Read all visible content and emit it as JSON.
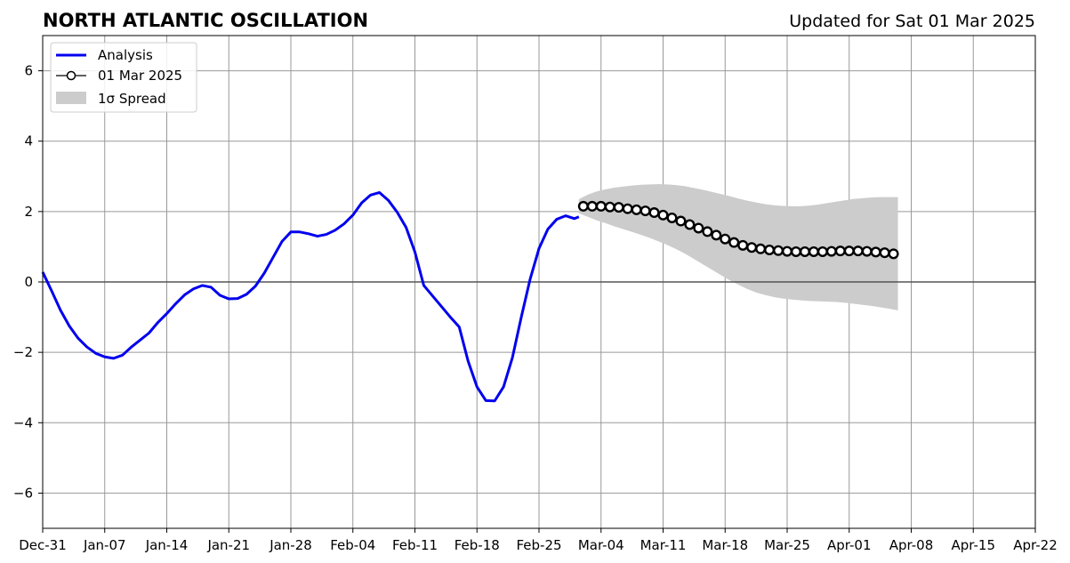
{
  "chart_data": {
    "type": "line",
    "title": "NORTH ATLANTIC OSCILLATION",
    "subtitle": "Updated for Sat 01 Mar 2025",
    "ylim": [
      -7,
      7
    ],
    "yticks": [
      6,
      4,
      2,
      0,
      -2,
      -4,
      -6
    ],
    "ytick_labels": [
      "6",
      "4",
      "2",
      "0",
      "−2",
      "−4",
      "−6"
    ],
    "xlim": [
      "2024-12-31",
      "2025-04-22"
    ],
    "xtick_labels": [
      "Dec-31",
      "Jan-07",
      "Jan-14",
      "Jan-21",
      "Jan-28",
      "Feb-04",
      "Feb-11",
      "Feb-18",
      "Feb-25",
      "Mar-04",
      "Mar-11",
      "Mar-18",
      "Mar-25",
      "Apr-01",
      "Apr-08",
      "Apr-15",
      "Apr-22"
    ],
    "xtick_dates": [
      "2024-12-31",
      "2025-01-07",
      "2025-01-14",
      "2025-01-21",
      "2025-01-28",
      "2025-02-04",
      "2025-02-11",
      "2025-02-18",
      "2025-02-25",
      "2025-03-04",
      "2025-03-11",
      "2025-03-18",
      "2025-03-25",
      "2025-04-01",
      "2025-04-08",
      "2025-04-15",
      "2025-04-22"
    ],
    "grid": true,
    "legend_position": "top-left",
    "legend": [
      {
        "label": "Analysis",
        "kind": "line",
        "color": "#0000ee"
      },
      {
        "label": "01 Mar 2025",
        "kind": "line-marker",
        "color": "#000000"
      },
      {
        "label": "1σ Spread",
        "kind": "patch",
        "color": "#cccccc"
      }
    ],
    "series": [
      {
        "name": "Analysis",
        "color": "#0000ee",
        "x": [
          "2024-12-31",
          "2025-01-01",
          "2025-01-02",
          "2025-01-03",
          "2025-01-04",
          "2025-01-05",
          "2025-01-06",
          "2025-01-07",
          "2025-01-08",
          "2025-01-09",
          "2025-01-10",
          "2025-01-11",
          "2025-01-12",
          "2025-01-13",
          "2025-01-14",
          "2025-01-15",
          "2025-01-16",
          "2025-01-17",
          "2025-01-18",
          "2025-01-19",
          "2025-01-20",
          "2025-01-21",
          "2025-01-22",
          "2025-01-23",
          "2025-01-24",
          "2025-01-25",
          "2025-01-26",
          "2025-01-27",
          "2025-01-28",
          "2025-01-29",
          "2025-01-30",
          "2025-01-31",
          "2025-02-01",
          "2025-02-02",
          "2025-02-03",
          "2025-02-04",
          "2025-02-05",
          "2025-02-06",
          "2025-02-07",
          "2025-02-08",
          "2025-02-09",
          "2025-02-10",
          "2025-02-11",
          "2025-02-12",
          "2025-02-13",
          "2025-02-14",
          "2025-02-15",
          "2025-02-16",
          "2025-02-17",
          "2025-02-18",
          "2025-02-19",
          "2025-02-20",
          "2025-02-21",
          "2025-02-22",
          "2025-02-23",
          "2025-02-24",
          "2025-02-25",
          "2025-02-26",
          "2025-02-27",
          "2025-02-28",
          "2025-03-01",
          "2025-03-01 12:00"
        ],
        "values": [
          0.28,
          -0.25,
          -0.8,
          -1.25,
          -1.6,
          -1.85,
          -2.03,
          -2.13,
          -2.17,
          -2.08,
          -1.85,
          -1.65,
          -1.45,
          -1.15,
          -0.9,
          -0.62,
          -0.37,
          -0.2,
          -0.1,
          -0.15,
          -0.38,
          -0.48,
          -0.47,
          -0.35,
          -0.12,
          0.25,
          0.7,
          1.15,
          1.42,
          1.42,
          1.37,
          1.3,
          1.35,
          1.47,
          1.65,
          1.9,
          2.25,
          2.47,
          2.54,
          2.32,
          1.98,
          1.55,
          0.85,
          -0.1,
          -0.4,
          -0.7,
          -1.0,
          -1.28,
          -2.25,
          -2.98,
          -3.37,
          -3.38,
          -2.98,
          -2.15,
          -1.0,
          0.08,
          0.95,
          1.5,
          1.78,
          1.88,
          1.8,
          1.85
        ]
      },
      {
        "name": "01 Mar 2025",
        "color": "#000000",
        "marker_fill": "#ffffff",
        "x_start": "2025-03-02",
        "x_step_days": 1,
        "values": [
          2.15,
          2.15,
          2.15,
          2.13,
          2.12,
          2.08,
          2.05,
          2.02,
          1.97,
          1.9,
          1.82,
          1.73,
          1.63,
          1.53,
          1.43,
          1.33,
          1.22,
          1.12,
          1.04,
          0.98,
          0.94,
          0.91,
          0.89,
          0.87,
          0.86,
          0.86,
          0.86,
          0.86,
          0.87,
          0.88,
          0.88,
          0.88,
          0.87,
          0.85,
          0.83,
          0.8
        ]
      }
    ],
    "spread": {
      "name": "1σ Spread",
      "color": "#cccccc",
      "x_start": "2025-03-01 12:00",
      "x_step_days": 1,
      "upper": [
        2.35,
        2.48,
        2.57,
        2.63,
        2.68,
        2.71,
        2.74,
        2.76,
        2.77,
        2.78,
        2.77,
        2.75,
        2.72,
        2.67,
        2.62,
        2.56,
        2.5,
        2.44,
        2.37,
        2.31,
        2.26,
        2.21,
        2.18,
        2.16,
        2.15,
        2.15,
        2.17,
        2.2,
        2.24,
        2.28,
        2.32,
        2.36,
        2.38,
        2.4,
        2.41,
        2.41,
        2.41
      ],
      "lower": [
        1.95,
        1.85,
        1.75,
        1.67,
        1.58,
        1.5,
        1.42,
        1.34,
        1.25,
        1.15,
        1.05,
        0.93,
        0.8,
        0.65,
        0.5,
        0.35,
        0.2,
        0.05,
        -0.08,
        -0.2,
        -0.3,
        -0.37,
        -0.43,
        -0.47,
        -0.5,
        -0.52,
        -0.54,
        -0.55,
        -0.56,
        -0.57,
        -0.59,
        -0.62,
        -0.65,
        -0.68,
        -0.72,
        -0.76,
        -0.81
      ]
    }
  }
}
